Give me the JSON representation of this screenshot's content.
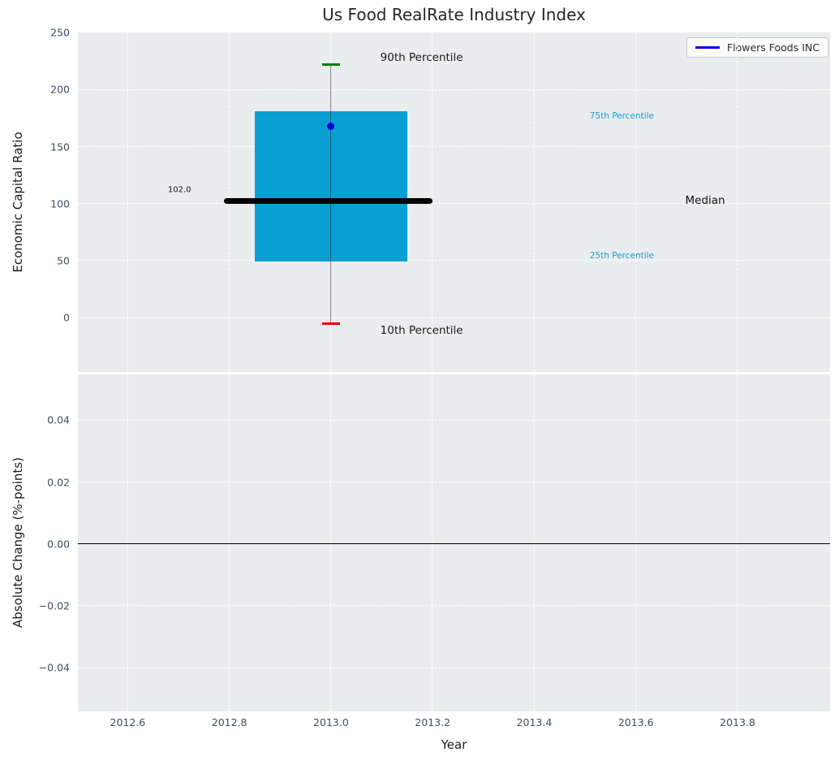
{
  "title": "Us Food RealRate Industry Index",
  "legend": {
    "label": "Flowers Foods INC",
    "position": "upper right"
  },
  "colors": {
    "panel_background": "#e9edee",
    "grid": "#ffffff",
    "box": "#089fd2",
    "median_line": "#000000",
    "whisker": "#555555",
    "cap_90th": "#008000",
    "cap_10th": "#ee0000",
    "company_point": "#0000dd",
    "legend_line": "#0000ee",
    "tick_label": "#3f4e63",
    "percentile_text": "#1a9ed3",
    "annotation_text": "#1a1a1a",
    "zero_line": "#000000"
  },
  "chart_data": [
    {
      "type": "boxplot",
      "title": "Us Food RealRate Industry Index",
      "xlabel": "Year",
      "ylabel": "Economic Capital Ratio",
      "xlim": [
        2012.502,
        2013.982
      ],
      "ylim": [
        -47.5,
        250
      ],
      "grid": true,
      "xticks": {
        "values": [
          2012.6,
          2012.8,
          2013.0,
          2013.2,
          2013.4,
          2013.6,
          2013.8
        ],
        "labels": [
          "2012.6",
          "2012.8",
          "2013.0",
          "2013.2",
          "2013.4",
          "2013.6",
          "2013.8"
        ]
      },
      "yticks": {
        "values": [
          0,
          50,
          100,
          150,
          200,
          250
        ],
        "labels": [
          "0",
          "50",
          "100",
          "150",
          "200",
          "250"
        ]
      },
      "box": {
        "x_center": 2013.0,
        "box_left": 2012.85,
        "box_right": 2013.15,
        "median_line_left": 2012.79,
        "median_line_right": 2013.2,
        "cap_half_width": 0.017,
        "p10": -5,
        "p25": 49,
        "median": 102,
        "p75": 181,
        "p90": 222
      },
      "company_point": {
        "name": "Flowers Foods INC",
        "x": 2013.0,
        "y": 168
      },
      "annotations": [
        {
          "id": "90th-percentile",
          "text": "90th Percentile",
          "x": 2013.097,
          "y": 228,
          "color": "#1a1a1a",
          "size": 13.5
        },
        {
          "id": "10th-percentile",
          "text": "10th Percentile",
          "x": 2013.097,
          "y": -11,
          "color": "#1a1a1a",
          "size": 13.5
        },
        {
          "id": "75th-percentile",
          "text": "75th Percentile",
          "x": 2013.509,
          "y": 177,
          "color": "#1a9ed3",
          "size": 10.5
        },
        {
          "id": "25th-percentile",
          "text": "25th Percentile",
          "x": 2013.509,
          "y": 54,
          "color": "#1a9ed3",
          "size": 10.5
        },
        {
          "id": "median",
          "text": "Median",
          "x": 2013.697,
          "y": 103,
          "color": "#111111",
          "size": 13.5
        },
        {
          "id": "median-value",
          "text": "102.0",
          "x": 2012.679,
          "y": 112,
          "color": "#111111",
          "size": 10
        }
      ]
    },
    {
      "type": "line",
      "ylabel": "Absolute Change (%-points)",
      "ylim": [
        -0.0541,
        0.0548
      ],
      "grid": true,
      "zero_line": 0.0,
      "yticks": {
        "values": [
          0.04,
          0.02,
          0.0,
          -0.02,
          -0.04
        ],
        "labels": [
          "0.04",
          "0.02",
          "0.00",
          "−0.02",
          "−0.04"
        ]
      },
      "series": []
    }
  ]
}
